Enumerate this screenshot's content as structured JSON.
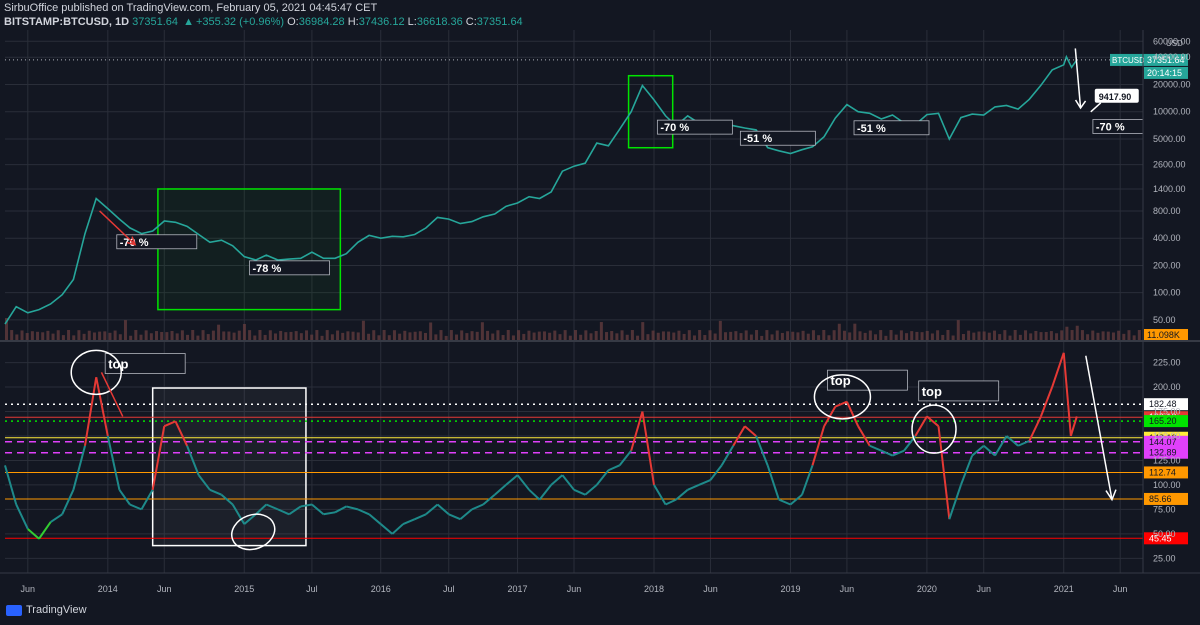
{
  "header": {
    "publisher": "SirbuOffice published on TradingView.com, February 05, 2021 04:45:47 CET",
    "symbol": "BITSTAMP:BTCUSD, 1D",
    "last": "37351.64",
    "change": "+355.32 (+0.96%)",
    "open_label": "O:",
    "open": "36984.28",
    "high_label": "H:",
    "high": "37436.12",
    "low_label": "L:",
    "low": "36618.36",
    "close_label": "C:",
    "close": "37351.64"
  },
  "footer": {
    "brand": "TradingView"
  },
  "colors": {
    "bg": "#131722",
    "grid": "#2a2e39",
    "candle_up": "#26a69a",
    "candle_down": "#ef5350",
    "osc": "#1e8a8a",
    "osc_hot": "#e53935",
    "osc_cold": "#32cd32",
    "annot_green": "#00e400",
    "annot_white": "#ffffff",
    "volume": "#6b4040"
  },
  "chart_data": [
    {
      "type": "line",
      "title": "BITSTAMP:BTCUSD, 1D",
      "scale": "log",
      "unit": "USD",
      "y_ticks": [
        50,
        100,
        200,
        400,
        800,
        1400,
        2600,
        5000,
        10000,
        20000,
        40000,
        60000
      ],
      "y_tick_labels": [
        "50.00",
        "100.00",
        "200.00",
        "400.00",
        "800.00",
        "1400.00",
        "2600.00",
        "5000.00",
        "10000.00",
        "20000.00",
        "40000.00",
        "60000.00"
      ],
      "x_start": "2013-04-01",
      "x_end": "2021-08-01",
      "x_ticks": [
        [
          "2013-06-01",
          "Jun"
        ],
        [
          "2014-01-01",
          "2014"
        ],
        [
          "2014-06-01",
          "Jun"
        ],
        [
          "2015-01-01",
          "2015"
        ],
        [
          "2015-07-01",
          "Jul"
        ],
        [
          "2016-01-01",
          "2016"
        ],
        [
          "2016-07-01",
          "Jul"
        ],
        [
          "2017-01-01",
          "2017"
        ],
        [
          "2017-06-01",
          "Jun"
        ],
        [
          "2018-01-01",
          "2018"
        ],
        [
          "2018-06-01",
          "Jun"
        ],
        [
          "2019-01-01",
          "2019"
        ],
        [
          "2019-06-01",
          "Jun"
        ],
        [
          "2020-01-01",
          "2020"
        ],
        [
          "2020-06-01",
          "Jun"
        ],
        [
          "2021-01-01",
          "2021"
        ],
        [
          "2021-06-01",
          "Jun"
        ]
      ],
      "series": [
        {
          "name": "BTCUSD",
          "points": [
            [
              "2013-04-01",
              45
            ],
            [
              "2013-05-01",
              70
            ],
            [
              "2013-06-01",
              60
            ],
            [
              "2013-07-01",
              65
            ],
            [
              "2013-08-01",
              75
            ],
            [
              "2013-09-01",
              95
            ],
            [
              "2013-10-01",
              140
            ],
            [
              "2013-11-01",
              450
            ],
            [
              "2013-12-01",
              1100
            ],
            [
              "2014-01-01",
              850
            ],
            [
              "2014-02-01",
              650
            ],
            [
              "2014-03-01",
              520
            ],
            [
              "2014-04-01",
              450
            ],
            [
              "2014-05-01",
              480
            ],
            [
              "2014-06-01",
              620
            ],
            [
              "2014-07-01",
              600
            ],
            [
              "2014-08-01",
              540
            ],
            [
              "2014-09-01",
              440
            ],
            [
              "2014-10-01",
              360
            ],
            [
              "2014-11-01",
              380
            ],
            [
              "2014-12-01",
              330
            ],
            [
              "2015-01-01",
              250
            ],
            [
              "2015-02-01",
              230
            ],
            [
              "2015-03-01",
              260
            ],
            [
              "2015-04-01",
              230
            ],
            [
              "2015-05-01",
              235
            ],
            [
              "2015-06-01",
              240
            ],
            [
              "2015-07-01",
              280
            ],
            [
              "2015-08-01",
              240
            ],
            [
              "2015-09-01",
              240
            ],
            [
              "2015-10-01",
              270
            ],
            [
              "2015-11-01",
              360
            ],
            [
              "2015-12-01",
              430
            ],
            [
              "2016-01-01",
              400
            ],
            [
              "2016-02-01",
              420
            ],
            [
              "2016-03-01",
              415
            ],
            [
              "2016-04-01",
              440
            ],
            [
              "2016-05-01",
              520
            ],
            [
              "2016-06-01",
              680
            ],
            [
              "2016-07-01",
              650
            ],
            [
              "2016-08-01",
              580
            ],
            [
              "2016-09-01",
              610
            ],
            [
              "2016-10-01",
              690
            ],
            [
              "2016-11-01",
              740
            ],
            [
              "2016-12-01",
              900
            ],
            [
              "2017-01-01",
              980
            ],
            [
              "2017-02-01",
              1150
            ],
            [
              "2017-03-01",
              1100
            ],
            [
              "2017-04-01",
              1300
            ],
            [
              "2017-05-01",
              2200
            ],
            [
              "2017-06-01",
              2500
            ],
            [
              "2017-07-01",
              2700
            ],
            [
              "2017-08-01",
              4500
            ],
            [
              "2017-09-01",
              4200
            ],
            [
              "2017-10-01",
              6400
            ],
            [
              "2017-11-01",
              10000
            ],
            [
              "2017-12-01",
              19500
            ],
            [
              "2018-01-01",
              13500
            ],
            [
              "2018-02-01",
              9000
            ],
            [
              "2018-03-01",
              7000
            ],
            [
              "2018-04-01",
              9000
            ],
            [
              "2018-05-01",
              7500
            ],
            [
              "2018-06-01",
              6400
            ],
            [
              "2018-07-01",
              7700
            ],
            [
              "2018-08-01",
              7000
            ],
            [
              "2018-09-01",
              6600
            ],
            [
              "2018-10-01",
              6300
            ],
            [
              "2018-11-01",
              4000
            ],
            [
              "2018-12-01",
              3700
            ],
            [
              "2019-01-01",
              3450
            ],
            [
              "2019-02-01",
              3800
            ],
            [
              "2019-03-01",
              4100
            ],
            [
              "2019-04-01",
              5300
            ],
            [
              "2019-05-01",
              8500
            ],
            [
              "2019-06-01",
              12000
            ],
            [
              "2019-07-01",
              10000
            ],
            [
              "2019-08-01",
              9600
            ],
            [
              "2019-09-01",
              8300
            ],
            [
              "2019-10-01",
              9200
            ],
            [
              "2019-11-01",
              7500
            ],
            [
              "2019-12-01",
              7200
            ],
            [
              "2020-01-01",
              9300
            ],
            [
              "2020-02-01",
              9600
            ],
            [
              "2020-03-01",
              5000
            ],
            [
              "2020-04-01",
              8600
            ],
            [
              "2020-05-01",
              9400
            ],
            [
              "2020-06-01",
              9200
            ],
            [
              "2020-07-01",
              11300
            ],
            [
              "2020-08-01",
              11700
            ],
            [
              "2020-09-01",
              10700
            ],
            [
              "2020-10-01",
              13700
            ],
            [
              "2020-11-01",
              19600
            ],
            [
              "2020-12-01",
              29000
            ],
            [
              "2021-01-01",
              33000
            ],
            [
              "2021-01-08",
              40500
            ],
            [
              "2021-01-22",
              31000
            ],
            [
              "2021-02-05",
              37351
            ]
          ]
        }
      ],
      "price_tags": [
        {
          "label": "BTCUSD",
          "value": "37351.64"
        },
        {
          "label": "",
          "value": "20:14:15"
        },
        {
          "label": "",
          "value": "11.098K"
        }
      ],
      "annotations": [
        {
          "text": "-70 %",
          "style": "white"
        },
        {
          "text": "-78 %",
          "style": "white"
        },
        {
          "text": "-70 %",
          "style": "white"
        },
        {
          "text": "-51 %",
          "style": "white"
        },
        {
          "text": "-51 %",
          "style": "white"
        },
        {
          "text": "9417.90",
          "style": "callout"
        },
        {
          "text": "-70 %",
          "style": "white"
        }
      ]
    },
    {
      "type": "line",
      "title": "",
      "y_ticks": [
        25,
        50,
        75,
        100,
        125,
        150,
        175,
        200,
        225
      ],
      "y_tick_labels": [
        "25.00",
        "50.00",
        "75.00",
        "100.00",
        "125.00",
        "150.00",
        "175.00",
        "200.00",
        "225.00"
      ],
      "levels": [
        {
          "value": 182.48,
          "color": "#ffffff",
          "style": "dotted"
        },
        {
          "value": 169.19,
          "color": "#e53935",
          "style": "solid"
        },
        {
          "value": 165.2,
          "color": "#00e400",
          "style": "dotted"
        },
        {
          "value": 148.19,
          "color": "#ffeb3b",
          "style": "solid"
        },
        {
          "value": 144.07,
          "color": "#e040fb",
          "style": "dashed"
        },
        {
          "value": 132.89,
          "color": "#e040fb",
          "style": "dashed"
        },
        {
          "value": 112.74,
          "color": "#ff9800",
          "style": "solid"
        },
        {
          "value": 85.66,
          "color": "#ff9800",
          "style": "solid"
        },
        {
          "value": 45.45,
          "color": "#ff0000",
          "style": "solid"
        }
      ],
      "level_labels": [
        "182.48",
        "169.19",
        "165.20",
        "148.19",
        "144.07",
        "132.89",
        "112.74",
        "85.66",
        "45.45"
      ],
      "series": [
        {
          "name": "oscillator",
          "points": [
            [
              "2013-04-01",
              120
            ],
            [
              "2013-05-01",
              80
            ],
            [
              "2013-06-01",
              55
            ],
            [
              "2013-07-01",
              45
            ],
            [
              "2013-08-01",
              62
            ],
            [
              "2013-09-01",
              70
            ],
            [
              "2013-10-01",
              95
            ],
            [
              "2013-11-01",
              140
            ],
            [
              "2013-12-01",
              210
            ],
            [
              "2014-01-01",
              150
            ],
            [
              "2014-02-01",
              95
            ],
            [
              "2014-03-01",
              80
            ],
            [
              "2014-04-01",
              75
            ],
            [
              "2014-05-01",
              95
            ],
            [
              "2014-06-01",
              160
            ],
            [
              "2014-07-01",
              165
            ],
            [
              "2014-08-01",
              140
            ],
            [
              "2014-09-01",
              110
            ],
            [
              "2014-10-01",
              95
            ],
            [
              "2014-11-01",
              90
            ],
            [
              "2014-12-01",
              80
            ],
            [
              "2015-01-01",
              60
            ],
            [
              "2015-02-01",
              70
            ],
            [
              "2015-03-01",
              80
            ],
            [
              "2015-04-01",
              75
            ],
            [
              "2015-05-01",
              70
            ],
            [
              "2015-06-01",
              78
            ],
            [
              "2015-07-01",
              80
            ],
            [
              "2015-08-01",
              70
            ],
            [
              "2015-09-01",
              72
            ],
            [
              "2015-10-01",
              78
            ],
            [
              "2015-11-01",
              75
            ],
            [
              "2015-12-01",
              70
            ],
            [
              "2016-01-01",
              60
            ],
            [
              "2016-02-01",
              50
            ],
            [
              "2016-03-01",
              60
            ],
            [
              "2016-04-01",
              65
            ],
            [
              "2016-05-01",
              70
            ],
            [
              "2016-06-01",
              80
            ],
            [
              "2016-07-01",
              70
            ],
            [
              "2016-08-01",
              65
            ],
            [
              "2016-09-01",
              75
            ],
            [
              "2016-10-01",
              80
            ],
            [
              "2016-11-01",
              90
            ],
            [
              "2016-12-01",
              100
            ],
            [
              "2017-01-01",
              110
            ],
            [
              "2017-02-01",
              95
            ],
            [
              "2017-03-01",
              85
            ],
            [
              "2017-04-01",
              100
            ],
            [
              "2017-05-01",
              110
            ],
            [
              "2017-06-01",
              95
            ],
            [
              "2017-07-01",
              90
            ],
            [
              "2017-08-01",
              100
            ],
            [
              "2017-09-01",
              115
            ],
            [
              "2017-10-01",
              120
            ],
            [
              "2017-11-01",
              135
            ],
            [
              "2017-12-01",
              175
            ],
            [
              "2018-01-01",
              100
            ],
            [
              "2018-02-01",
              80
            ],
            [
              "2018-03-01",
              85
            ],
            [
              "2018-04-01",
              95
            ],
            [
              "2018-05-01",
              100
            ],
            [
              "2018-06-01",
              105
            ],
            [
              "2018-07-01",
              120
            ],
            [
              "2018-08-01",
              140
            ],
            [
              "2018-09-01",
              160
            ],
            [
              "2018-10-01",
              150
            ],
            [
              "2018-11-01",
              120
            ],
            [
              "2018-12-01",
              85
            ],
            [
              "2019-01-01",
              80
            ],
            [
              "2019-02-01",
              90
            ],
            [
              "2019-03-01",
              120
            ],
            [
              "2019-04-01",
              160
            ],
            [
              "2019-05-01",
              180
            ],
            [
              "2019-06-01",
              185
            ],
            [
              "2019-07-01",
              160
            ],
            [
              "2019-08-01",
              140
            ],
            [
              "2019-09-01",
              135
            ],
            [
              "2019-10-01",
              130
            ],
            [
              "2019-11-01",
              135
            ],
            [
              "2019-12-01",
              150
            ],
            [
              "2020-01-01",
              170
            ],
            [
              "2020-02-01",
              160
            ],
            [
              "2020-03-01",
              65
            ],
            [
              "2020-04-01",
              100
            ],
            [
              "2020-05-01",
              130
            ],
            [
              "2020-06-01",
              140
            ],
            [
              "2020-07-01",
              130
            ],
            [
              "2020-08-01",
              150
            ],
            [
              "2020-09-01",
              140
            ],
            [
              "2020-10-01",
              145
            ],
            [
              "2020-11-01",
              170
            ],
            [
              "2020-12-01",
              200
            ],
            [
              "2021-01-01",
              235
            ],
            [
              "2021-01-20",
              150
            ],
            [
              "2021-02-05",
              170
            ]
          ]
        }
      ],
      "annotations": [
        {
          "text": "top"
        },
        {
          "text": "top"
        },
        {
          "text": "top"
        }
      ]
    }
  ]
}
